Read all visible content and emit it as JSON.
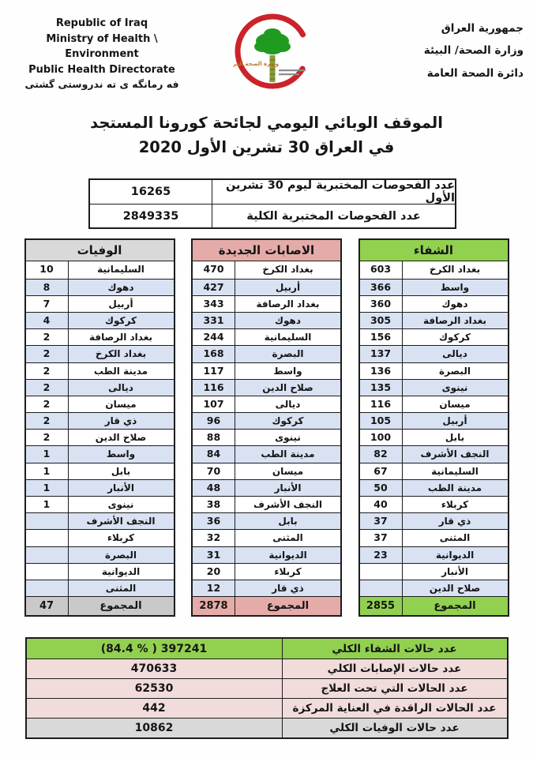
{
  "header": {
    "english": {
      "line1": "Republic of Iraq",
      "line2": "Ministry of Health \\ Environment",
      "line3": "Public Health Directorate",
      "line4": "فه رمانگه ی ته ندروستی گشتی"
    },
    "arabic": {
      "line1": "جمهورية العراق",
      "line2": "وزارة الصحة/ البيئة",
      "line3": "دائرة الصحة العامة"
    },
    "logo_text": "وزارة الصحة العراقية"
  },
  "title": {
    "line1": "الموقف الوبائي اليومي لجائحة كورونا المستجد",
    "line2": "في العراق  30  تشرين الأول 2020"
  },
  "tests": {
    "rows": [
      {
        "value": "16265",
        "label": "عدد الفحوصات المختبرية  ليوم 30 تشرين الأول"
      },
      {
        "value": "2849335",
        "label": "عدد الفحوصات المختبرية الكلية"
      }
    ]
  },
  "tables": [
    {
      "id": "deaths",
      "title": "الوفيات",
      "theme": "gray",
      "rows": [
        {
          "region": "السليمانية",
          "value": "10"
        },
        {
          "region": "دهوك",
          "value": "8"
        },
        {
          "region": "أربيل",
          "value": "7"
        },
        {
          "region": "كركوك",
          "value": "4"
        },
        {
          "region": "بغداد الرصافة",
          "value": "2"
        },
        {
          "region": "بغداد الكرخ",
          "value": "2"
        },
        {
          "region": "مدينة الطب",
          "value": "2"
        },
        {
          "region": "ديالى",
          "value": "2"
        },
        {
          "region": "ميسان",
          "value": "2"
        },
        {
          "region": "ذي قار",
          "value": "2"
        },
        {
          "region": "صلاح الدين",
          "value": "2"
        },
        {
          "region": "واسط",
          "value": "1"
        },
        {
          "region": "بابل",
          "value": "1"
        },
        {
          "region": "الأنبار",
          "value": "1"
        },
        {
          "region": "نينوى",
          "value": "1"
        },
        {
          "region": "النجف الأشرف",
          "value": ""
        },
        {
          "region": "كربلاء",
          "value": ""
        },
        {
          "region": "البصرة",
          "value": ""
        },
        {
          "region": "الديوانية",
          "value": ""
        },
        {
          "region": "المثنى",
          "value": ""
        }
      ],
      "total_label": "المجموع",
      "total_value": "47"
    },
    {
      "id": "new-cases",
      "title": "الاصابات الجديدة",
      "theme": "pink",
      "rows": [
        {
          "region": "بغداد الكرخ",
          "value": "470"
        },
        {
          "region": "أربيل",
          "value": "427"
        },
        {
          "region": "بغداد الرصافة",
          "value": "343"
        },
        {
          "region": "دهوك",
          "value": "331"
        },
        {
          "region": "السليمانية",
          "value": "244"
        },
        {
          "region": "البصرة",
          "value": "168"
        },
        {
          "region": "واسط",
          "value": "117"
        },
        {
          "region": "صلاح الدين",
          "value": "116"
        },
        {
          "region": "ديالى",
          "value": "107"
        },
        {
          "region": "كركوك",
          "value": "96"
        },
        {
          "region": "نينوى",
          "value": "88"
        },
        {
          "region": "مدينة الطب",
          "value": "84"
        },
        {
          "region": "ميسان",
          "value": "70"
        },
        {
          "region": "الأنبار",
          "value": "48"
        },
        {
          "region": "النجف الأشرف",
          "value": "38"
        },
        {
          "region": "بابل",
          "value": "36"
        },
        {
          "region": "المثنى",
          "value": "32"
        },
        {
          "region": "الديوانية",
          "value": "31"
        },
        {
          "region": "كربلاء",
          "value": "20"
        },
        {
          "region": "ذي قار",
          "value": "12"
        }
      ],
      "total_label": "المجموع",
      "total_value": "2878"
    },
    {
      "id": "recoveries",
      "title": "الشفاء",
      "theme": "green",
      "rows": [
        {
          "region": "بغداد الكرخ",
          "value": "603"
        },
        {
          "region": "واسط",
          "value": "366"
        },
        {
          "region": "دهوك",
          "value": "360"
        },
        {
          "region": "بغداد الرصافة",
          "value": "305"
        },
        {
          "region": "كركوك",
          "value": "156"
        },
        {
          "region": "ديالى",
          "value": "137"
        },
        {
          "region": "البصرة",
          "value": "136"
        },
        {
          "region": "نينوى",
          "value": "135"
        },
        {
          "region": "ميسان",
          "value": "116"
        },
        {
          "region": "أربيل",
          "value": "105"
        },
        {
          "region": "بابل",
          "value": "100"
        },
        {
          "region": "النجف الأشرف",
          "value": "82"
        },
        {
          "region": "السليمانية",
          "value": "67"
        },
        {
          "region": "مدينة الطب",
          "value": "50"
        },
        {
          "region": "كربلاء",
          "value": "40"
        },
        {
          "region": "ذي قار",
          "value": "37"
        },
        {
          "region": "المثنى",
          "value": "37"
        },
        {
          "region": "الديوانية",
          "value": "23"
        },
        {
          "region": "الأنبار",
          "value": ""
        },
        {
          "region": "صلاح الدين",
          "value": ""
        }
      ],
      "total_label": "المجموع",
      "total_value": "2855"
    }
  ],
  "summary": {
    "rows": [
      {
        "value": "(84.4 % )   397241",
        "label": "عدد حالات الشفاء الكلي",
        "theme": "green"
      },
      {
        "value": "470633",
        "label": "عدد حالات الإصابات الكلي",
        "theme": "pink"
      },
      {
        "value": "62530",
        "label": "عدد الحالات التي تحت العلاج",
        "theme": "pink"
      },
      {
        "value": "442",
        "label": "عدد الحالات الراقدة في العناية المركزة",
        "theme": "pink"
      },
      {
        "value": "10862",
        "label": "عدد حالات الوفيات الكلي",
        "theme": "gray"
      }
    ]
  },
  "colors": {
    "recovery_green": "#92d050",
    "cases_pink_header": "#e5aba9",
    "cases_pink_light": "#f2dcdb",
    "deaths_gray_header": "#d9d9d9",
    "deaths_gray_total": "#c9c9c9",
    "row_stripe_blue": "#d9e2f3",
    "crescent_red": "#cc2229",
    "palm_green": "#1f9b1f"
  }
}
